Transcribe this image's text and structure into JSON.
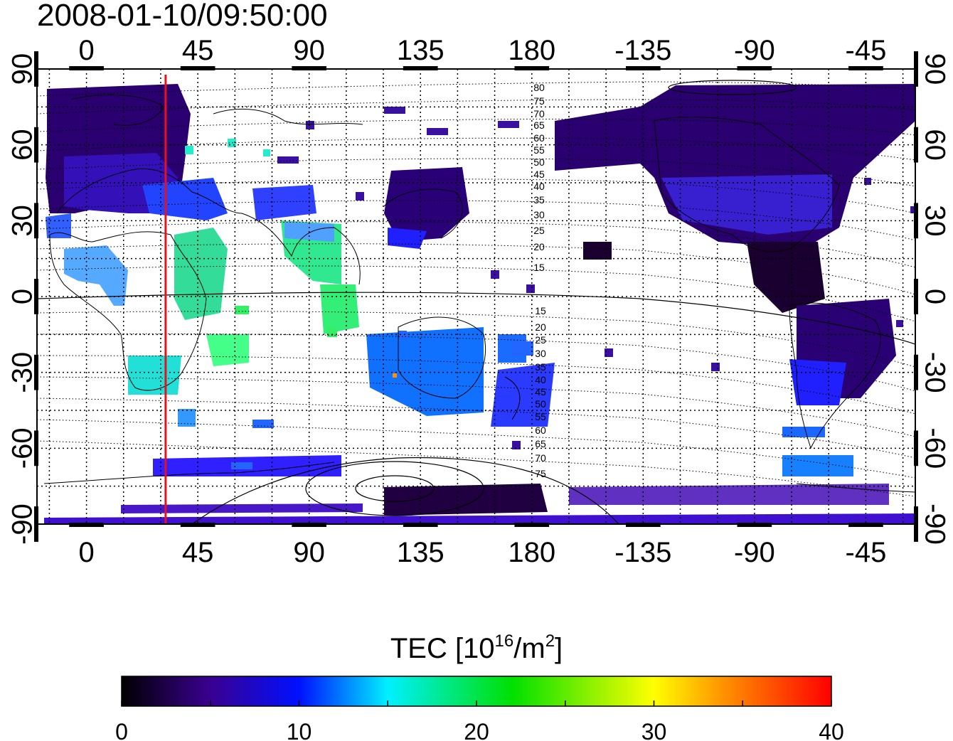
{
  "map": {
    "timestamp": "2008-01-10/09:50:00",
    "lon_ticks_top": [
      "0",
      "45",
      "90",
      "135",
      "180",
      "-135",
      "-90",
      "-45"
    ],
    "lon_ticks_bottom": [
      "0",
      "45",
      "90",
      "135",
      "180",
      "-135",
      "-90",
      "-45"
    ],
    "lat_ticks_left": [
      "90",
      "60",
      "30",
      "0",
      "-30",
      "-60",
      "-90"
    ],
    "lat_ticks_right": [
      "90",
      "60",
      "30",
      "0",
      "-30",
      "-60",
      "-90"
    ],
    "lon_tick_values": [
      0,
      45,
      90,
      135,
      180,
      225,
      270,
      315
    ],
    "lat_tick_values": [
      90,
      60,
      30,
      0,
      -30,
      -60,
      -90
    ],
    "lon_range": [
      -20,
      335
    ],
    "lat_range": [
      -90,
      90
    ],
    "marker_longitude": 32,
    "marker_color": "#e8101a",
    "contour_labels_north": [
      "80",
      "75",
      "70",
      "65",
      "60",
      "55",
      "50",
      "45",
      "40",
      "35",
      "30",
      "25",
      "20",
      "15"
    ],
    "contour_labels_south": [
      "15",
      "20",
      "25",
      "30",
      "35",
      "40",
      "45",
      "50",
      "55",
      "60",
      "65",
      "70",
      "75"
    ],
    "grid": true
  },
  "colorbar": {
    "title_main": "TEC  [10",
    "title_exp": "16",
    "title_unit": "/m",
    "title_exp2": "2",
    "title_close": "]",
    "tick_labels": [
      "0",
      "10",
      "20",
      "30",
      "40"
    ],
    "range": [
      0,
      40
    ],
    "stops": [
      {
        "v": 0,
        "color": "#000000"
      },
      {
        "v": 5,
        "color": "#3a0090"
      },
      {
        "v": 10,
        "color": "#0010ff"
      },
      {
        "v": 15,
        "color": "#00f0ff"
      },
      {
        "v": 22,
        "color": "#00e000"
      },
      {
        "v": 30,
        "color": "#ffff00"
      },
      {
        "v": 34,
        "color": "#ff9000"
      },
      {
        "v": 40,
        "color": "#ff0000"
      }
    ]
  }
}
